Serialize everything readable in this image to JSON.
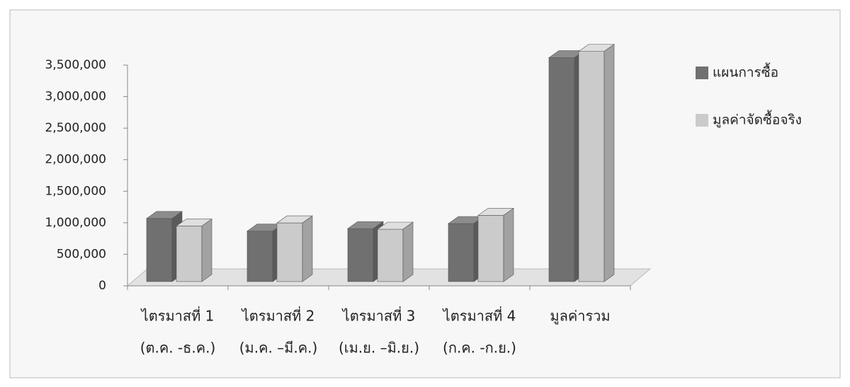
{
  "chart_data": {
    "type": "bar3d",
    "categories": [
      [
        "ไตรมาสที่ 1",
        "(ต.ค. -ธ.ค.)"
      ],
      [
        "ไตรมาสที่ 2",
        "(ม.ค. –มี.ค.)"
      ],
      [
        "ไตรมาสที่ 3",
        "(เม.ย. –มิ.ย.)"
      ],
      [
        "ไตรมาสที่ 4",
        "(ก.ค. -ก.ย.)"
      ],
      [
        "มูลค่ารวม"
      ]
    ],
    "series": [
      {
        "name": "แผนการซื้อ",
        "color": "#707070",
        "values": [
          1000000,
          800000,
          840000,
          920000,
          3550000
        ]
      },
      {
        "name": "มูลค่าจัดซื้อจริง",
        "color": "#cbcbcb",
        "values": [
          880000,
          930000,
          830000,
          1050000,
          3650000
        ]
      }
    ],
    "ylim": [
      0,
      3500000
    ],
    "yticks": [
      0,
      {
        "value": 500000,
        "label": "500,000"
      },
      {
        "value": 1000000,
        "label": "1,000,000"
      },
      {
        "value": 1500000,
        "label": "1,500,000"
      },
      {
        "value": 2000000,
        "label": "2,000,000"
      },
      {
        "value": 2500000,
        "label": "2,500,000"
      },
      {
        "value": 3000000,
        "label": "3,000,000"
      },
      {
        "value": 3500000,
        "label": "3,500,000"
      }
    ],
    "legend": "right"
  }
}
